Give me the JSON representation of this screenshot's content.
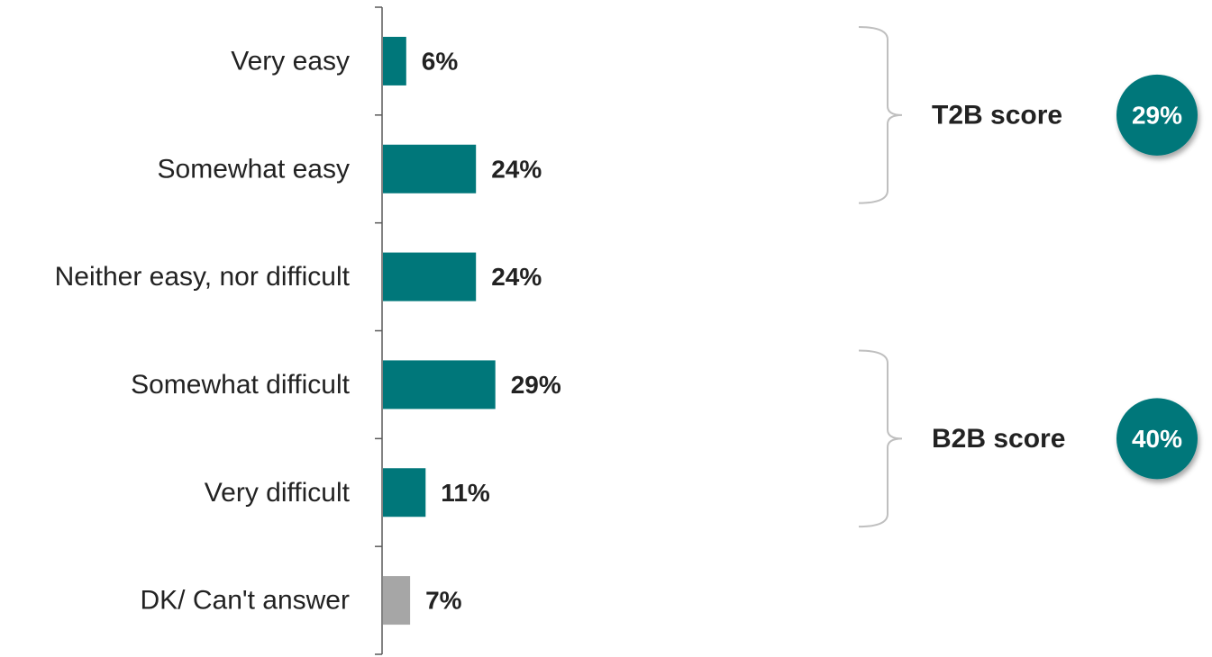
{
  "chart_data": {
    "type": "bar",
    "orientation": "horizontal",
    "categories": [
      "Very easy",
      "Somewhat easy",
      "Neither easy, nor difficult",
      "Somewhat difficult",
      "Very difficult",
      "DK/ Can't answer"
    ],
    "values": [
      6,
      24,
      24,
      29,
      11,
      7
    ],
    "value_labels": [
      "6%",
      "24%",
      "24%",
      "29%",
      "11%",
      "7%"
    ],
    "bar_colors": [
      "#00777A",
      "#00777A",
      "#00777A",
      "#00777A",
      "#00777A",
      "#A6A6A6"
    ],
    "unit": "%",
    "title": "",
    "xlabel": "",
    "ylabel": "",
    "grid": false,
    "legend": "none",
    "annotations": [
      {
        "label": "T2B score",
        "value": 29,
        "value_label": "29%",
        "spans_categories": [
          "Very easy",
          "Somewhat easy"
        ]
      },
      {
        "label": "B2B score",
        "value": 40,
        "value_label": "40%",
        "spans_categories": [
          "Somewhat difficult",
          "Very difficult"
        ]
      }
    ],
    "colors": {
      "bar": "#00777A",
      "bar_dk": "#A6A6A6",
      "badge": "#00777A",
      "axis": "#595959",
      "bracket": "#BFBFBF",
      "text": "#222222"
    }
  }
}
